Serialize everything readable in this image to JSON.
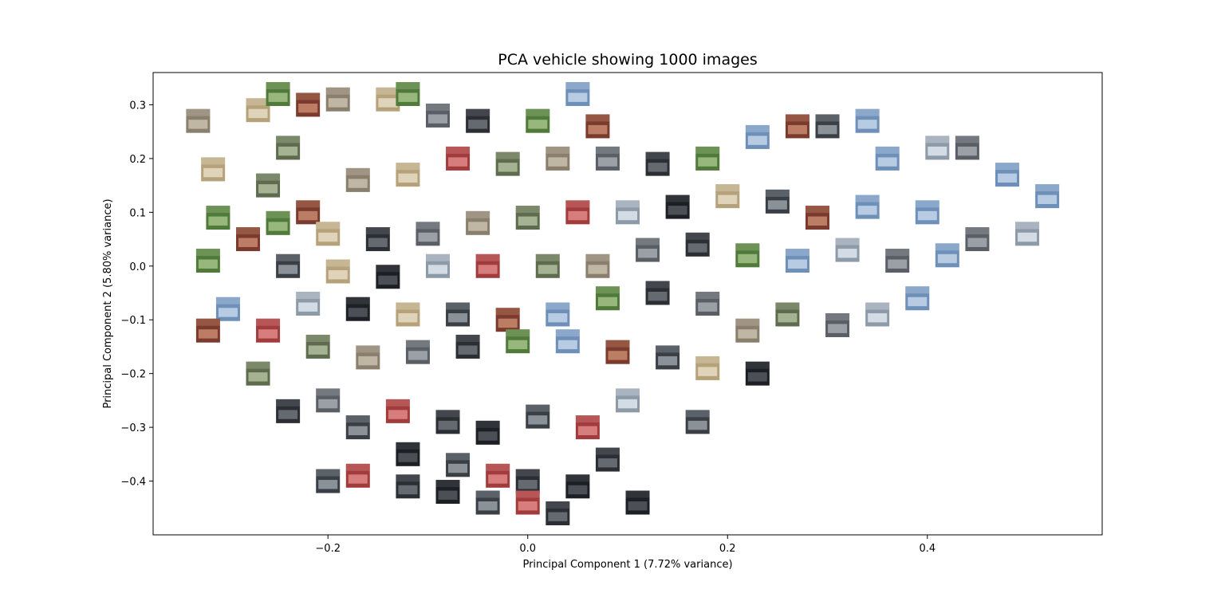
{
  "chart_data": {
    "type": "scatter",
    "title": "PCA vehicle showing 1000 images",
    "xlabel": "Principal Component 1 (7.72% variance)",
    "ylabel": "Principal Component 2 (5.80% variance)",
    "xlim": [
      -0.375,
      0.575
    ],
    "ylim": [
      -0.5,
      0.36
    ],
    "xticks": [
      {
        "value": -0.2,
        "label": "−0.2"
      },
      {
        "value": 0.0,
        "label": "0.0"
      },
      {
        "value": 0.2,
        "label": "0.2"
      },
      {
        "value": 0.4,
        "label": "0.4"
      }
    ],
    "yticks": [
      {
        "value": 0.3,
        "label": "0.3"
      },
      {
        "value": 0.2,
        "label": "0.2"
      },
      {
        "value": 0.1,
        "label": "0.1"
      },
      {
        "value": 0.0,
        "label": "0.0"
      },
      {
        "value": -0.1,
        "label": "−0.1"
      },
      {
        "value": -0.2,
        "label": "−0.2"
      },
      {
        "value": -0.3,
        "label": "−0.3"
      },
      {
        "value": -0.4,
        "label": "−0.4"
      }
    ],
    "grid": false,
    "marker": "image-thumbnail",
    "points_shown": 1000,
    "sample_points": [
      {
        "x": -0.33,
        "y": 0.27
      },
      {
        "x": -0.315,
        "y": 0.18
      },
      {
        "x": -0.31,
        "y": 0.09
      },
      {
        "x": -0.32,
        "y": 0.01
      },
      {
        "x": -0.3,
        "y": -0.08
      },
      {
        "x": -0.32,
        "y": -0.12
      },
      {
        "x": -0.27,
        "y": 0.29
      },
      {
        "x": -0.25,
        "y": 0.32
      },
      {
        "x": -0.24,
        "y": 0.22
      },
      {
        "x": -0.22,
        "y": 0.3
      },
      {
        "x": -0.19,
        "y": 0.31
      },
      {
        "x": -0.14,
        "y": 0.31
      },
      {
        "x": -0.12,
        "y": 0.32
      },
      {
        "x": -0.09,
        "y": 0.28
      },
      {
        "x": -0.05,
        "y": 0.27
      },
      {
        "x": 0.01,
        "y": 0.27
      },
      {
        "x": 0.05,
        "y": 0.32
      },
      {
        "x": 0.07,
        "y": 0.26
      },
      {
        "x": -0.26,
        "y": 0.15
      },
      {
        "x": -0.22,
        "y": 0.1
      },
      {
        "x": -0.17,
        "y": 0.16
      },
      {
        "x": -0.12,
        "y": 0.17
      },
      {
        "x": -0.07,
        "y": 0.2
      },
      {
        "x": -0.02,
        "y": 0.19
      },
      {
        "x": 0.03,
        "y": 0.2
      },
      {
        "x": 0.08,
        "y": 0.2
      },
      {
        "x": 0.13,
        "y": 0.19
      },
      {
        "x": 0.18,
        "y": 0.2
      },
      {
        "x": 0.23,
        "y": 0.24
      },
      {
        "x": 0.27,
        "y": 0.26
      },
      {
        "x": 0.3,
        "y": 0.26
      },
      {
        "x": 0.34,
        "y": 0.27
      },
      {
        "x": 0.36,
        "y": 0.2
      },
      {
        "x": 0.41,
        "y": 0.22
      },
      {
        "x": 0.44,
        "y": 0.22
      },
      {
        "x": 0.48,
        "y": 0.17
      },
      {
        "x": 0.52,
        "y": 0.13
      },
      {
        "x": 0.5,
        "y": 0.06
      },
      {
        "x": 0.45,
        "y": 0.05
      },
      {
        "x": 0.4,
        "y": 0.1
      },
      {
        "x": 0.34,
        "y": 0.11
      },
      {
        "x": 0.29,
        "y": 0.09
      },
      {
        "x": 0.25,
        "y": 0.12
      },
      {
        "x": 0.2,
        "y": 0.13
      },
      {
        "x": 0.15,
        "y": 0.11
      },
      {
        "x": 0.1,
        "y": 0.1
      },
      {
        "x": 0.05,
        "y": 0.1
      },
      {
        "x": 0.0,
        "y": 0.09
      },
      {
        "x": -0.05,
        "y": 0.08
      },
      {
        "x": -0.1,
        "y": 0.06
      },
      {
        "x": -0.15,
        "y": 0.05
      },
      {
        "x": -0.2,
        "y": 0.06
      },
      {
        "x": -0.25,
        "y": 0.08
      },
      {
        "x": -0.28,
        "y": 0.05
      },
      {
        "x": -0.24,
        "y": 0.0
      },
      {
        "x": -0.19,
        "y": -0.01
      },
      {
        "x": -0.14,
        "y": -0.02
      },
      {
        "x": -0.09,
        "y": 0.0
      },
      {
        "x": -0.04,
        "y": 0.0
      },
      {
        "x": 0.02,
        "y": 0.0
      },
      {
        "x": 0.07,
        "y": 0.0
      },
      {
        "x": 0.12,
        "y": 0.03
      },
      {
        "x": 0.17,
        "y": 0.04
      },
      {
        "x": 0.22,
        "y": 0.02
      },
      {
        "x": 0.27,
        "y": 0.01
      },
      {
        "x": 0.32,
        "y": 0.03
      },
      {
        "x": 0.37,
        "y": 0.01
      },
      {
        "x": 0.42,
        "y": 0.02
      },
      {
        "x": 0.39,
        "y": -0.06
      },
      {
        "x": 0.35,
        "y": -0.09
      },
      {
        "x": 0.31,
        "y": -0.11
      },
      {
        "x": 0.26,
        "y": -0.09
      },
      {
        "x": 0.22,
        "y": -0.12
      },
      {
        "x": 0.18,
        "y": -0.07
      },
      {
        "x": 0.13,
        "y": -0.05
      },
      {
        "x": 0.08,
        "y": -0.06
      },
      {
        "x": 0.03,
        "y": -0.09
      },
      {
        "x": -0.02,
        "y": -0.1
      },
      {
        "x": -0.07,
        "y": -0.09
      },
      {
        "x": -0.12,
        "y": -0.09
      },
      {
        "x": -0.17,
        "y": -0.08
      },
      {
        "x": -0.22,
        "y": -0.07
      },
      {
        "x": -0.26,
        "y": -0.12
      },
      {
        "x": -0.21,
        "y": -0.15
      },
      {
        "x": -0.16,
        "y": -0.17
      },
      {
        "x": -0.11,
        "y": -0.16
      },
      {
        "x": -0.06,
        "y": -0.15
      },
      {
        "x": -0.01,
        "y": -0.14
      },
      {
        "x": 0.04,
        "y": -0.14
      },
      {
        "x": 0.09,
        "y": -0.16
      },
      {
        "x": 0.14,
        "y": -0.17
      },
      {
        "x": 0.18,
        "y": -0.19
      },
      {
        "x": 0.23,
        "y": -0.2
      },
      {
        "x": 0.1,
        "y": -0.25
      },
      {
        "x": 0.17,
        "y": -0.29
      },
      {
        "x": -0.27,
        "y": -0.2
      },
      {
        "x": -0.24,
        "y": -0.27
      },
      {
        "x": -0.2,
        "y": -0.25
      },
      {
        "x": -0.17,
        "y": -0.3
      },
      {
        "x": -0.13,
        "y": -0.27
      },
      {
        "x": -0.08,
        "y": -0.29
      },
      {
        "x": -0.04,
        "y": -0.31
      },
      {
        "x": 0.01,
        "y": -0.28
      },
      {
        "x": 0.06,
        "y": -0.3
      },
      {
        "x": 0.08,
        "y": -0.36
      },
      {
        "x": -0.12,
        "y": -0.35
      },
      {
        "x": -0.07,
        "y": -0.37
      },
      {
        "x": -0.03,
        "y": -0.39
      },
      {
        "x": 0.0,
        "y": -0.4
      },
      {
        "x": 0.05,
        "y": -0.41
      },
      {
        "x": -0.2,
        "y": -0.4
      },
      {
        "x": -0.17,
        "y": -0.39
      },
      {
        "x": -0.12,
        "y": -0.41
      },
      {
        "x": -0.08,
        "y": -0.42
      },
      {
        "x": -0.04,
        "y": -0.44
      },
      {
        "x": 0.0,
        "y": -0.44
      },
      {
        "x": 0.03,
        "y": -0.46
      },
      {
        "x": 0.11,
        "y": -0.44
      }
    ]
  }
}
